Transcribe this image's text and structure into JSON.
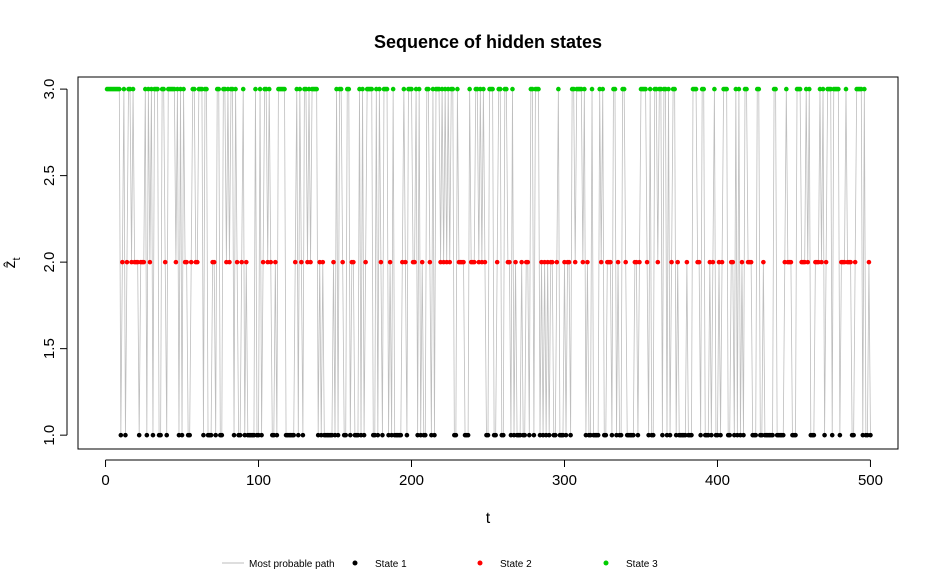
{
  "chart_data": {
    "type": "scatter",
    "title": "Sequence of hidden states",
    "xlabel": "t",
    "ylabel": "ẑ",
    "ylabel_subscript": "t",
    "xlim": [
      -18,
      518
    ],
    "ylim": [
      0.92,
      3.07
    ],
    "x_ticks": [
      0,
      100,
      200,
      300,
      400,
      500
    ],
    "x_tick_labels": [
      "0",
      "100",
      "200",
      "300",
      "400",
      "500"
    ],
    "y_ticks": [
      1.0,
      1.5,
      2.0,
      2.5,
      3.0
    ],
    "y_tick_labels": [
      "1.0",
      "1.5",
      "2.0",
      "2.5",
      "3.0"
    ],
    "grid": false,
    "legend_position": "bottom",
    "legend": [
      {
        "label": "Most probable path",
        "kind": "line",
        "color": "#bebebe"
      },
      {
        "label": "State 1",
        "kind": "point",
        "color": "#000000"
      },
      {
        "label": "State 2",
        "kind": "point",
        "color": "#ff0000"
      },
      {
        "label": "State 3",
        "kind": "point",
        "color": "#00cd00"
      }
    ],
    "colors": {
      "path": "#bebebe",
      "state_1": "#000000",
      "state_2": "#ff0000",
      "state_3": "#00cd00"
    },
    "n_points": 500,
    "states": "33333333312312332322212223132313331133213333323131322112332233313311122133113323233132112312111113113123323211213333311111123132133232333312121111112131332113312211131312333311313213331213111112321333223131211332131333232323233113222211132223323232113331123311332213121112112213313331212121221123111212213323333231211311113231122213312113321111122123333213113323313313123312111112111333221331112123112123331122131312133222111331121111113311111232221113332223231112223231233313333122232221123333131121133332222111321313311121333133113312233123221112233"
  }
}
